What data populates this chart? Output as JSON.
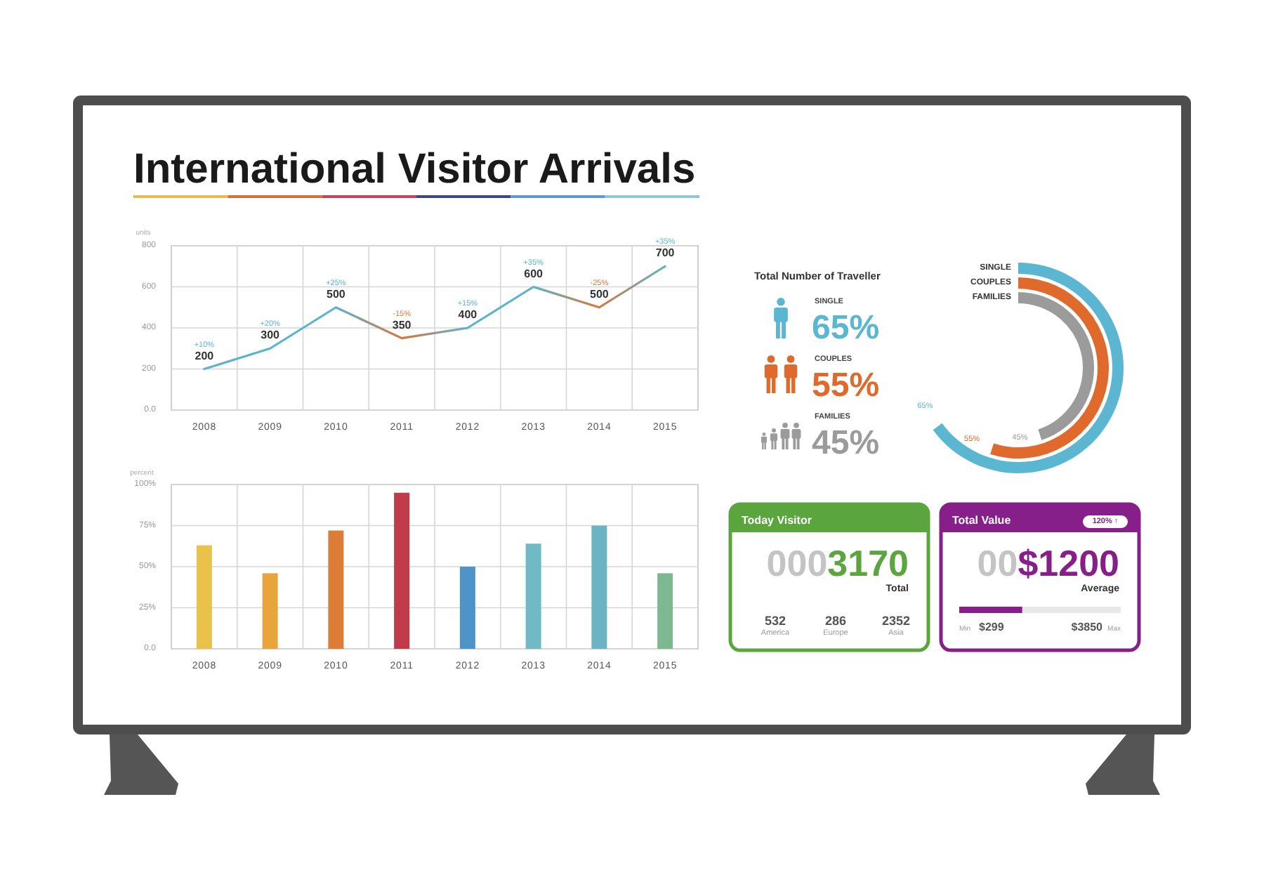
{
  "chart_data": [
    {
      "type": "line",
      "title": "International Visitor Arrivals",
      "ylabel": "units",
      "categories": [
        "2008",
        "2009",
        "2010",
        "2011",
        "2012",
        "2013",
        "2014",
        "2015"
      ],
      "series": [
        {
          "colors": [
            "#5ab4cc",
            "#5ab4cc",
            "#5ab4cc",
            "#d9773a",
            "#5ab4cc",
            "#5ab4cc",
            "#d9773a",
            "#5ab4cc"
          ],
          "values": [
            200,
            300,
            500,
            350,
            400,
            600,
            500,
            700
          ]
        }
      ],
      "ylim": [
        0,
        800
      ],
      "yticks": [
        {
          "value": 0,
          "label": "0.0"
        },
        200,
        400,
        600,
        800
      ],
      "grid": true,
      "data_labels": true,
      "annotations": [
        {
          "text": "+10%",
          "x": "2008",
          "y": 200
        },
        {
          "text": "+20%",
          "x": "2009",
          "y": 300
        },
        {
          "text": "+25%",
          "x": "2010",
          "y": 500
        },
        {
          "text": "-15%",
          "x": "2011",
          "y": 350
        },
        {
          "text": "+15%",
          "x": "2012",
          "y": 400
        },
        {
          "text": "+35%",
          "x": "2013",
          "y": 600
        },
        {
          "text": "-25%",
          "x": "2014",
          "y": 500
        },
        {
          "text": "+35%",
          "x": "2015",
          "y": 700
        }
      ]
    },
    {
      "type": "bar",
      "ylabel": "percent",
      "categories": [
        "2008",
        "2009",
        "2010",
        "2011",
        "2012",
        "2013",
        "2014",
        "2015"
      ],
      "values": [
        63,
        46,
        72,
        95,
        50,
        64,
        75,
        46
      ],
      "colors": [
        "#e9c24b",
        "#e8a53c",
        "#dc7c36",
        "#c23b4b",
        "#4f94c9",
        "#72b9c6",
        "#6cb4c3",
        "#7db891"
      ],
      "ylim": [
        0,
        100
      ],
      "yticks": [
        {
          "value": 0,
          "label": "0.0"
        },
        {
          "value": 25,
          "label": "25%"
        },
        {
          "value": 50,
          "label": "50%"
        },
        {
          "value": 75,
          "label": "75%"
        },
        {
          "value": 100,
          "label": "100%"
        }
      ],
      "grid": true
    },
    {
      "type": "other",
      "title": "Total Number of Traveller",
      "categories": [
        "SINGLE",
        "COUPLES",
        "FAMILIES"
      ],
      "values": [
        65,
        55,
        45
      ],
      "colors": [
        "#5bb6d2",
        "#df6a2c",
        "#9b9b9b"
      ],
      "value_labels": [
        "65%",
        "55%",
        "45%"
      ]
    },
    {
      "type": "other",
      "title": "Today Visitor",
      "color": "#5ba53f",
      "categories": [
        "America",
        "Europe",
        "Asia"
      ],
      "values": [
        532,
        286,
        2352
      ],
      "data_labels": true,
      "annotations": [
        "000",
        "3170",
        "Total"
      ]
    },
    {
      "type": "other",
      "title": "Total Value",
      "color": "#871f8a",
      "annotations": [
        "120% ↑",
        "00",
        "$1200",
        "Average",
        "Min",
        "$299",
        "$3850",
        "Max"
      ]
    }
  ]
}
